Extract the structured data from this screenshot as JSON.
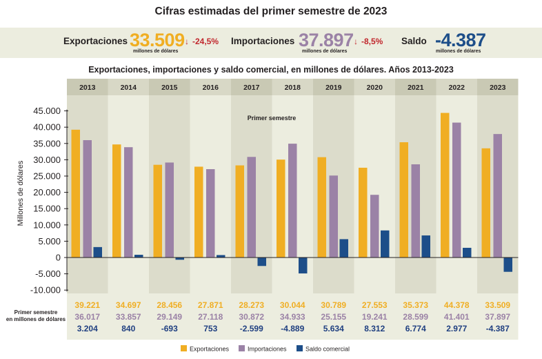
{
  "title": "Cifras estimadas del primer semestre de 2023",
  "kpis": {
    "exports": {
      "label": "Exportaciones",
      "value": "33.509",
      "unit": "millones de dólares",
      "change": "-24,5%"
    },
    "imports": {
      "label": "Importaciones",
      "value": "37.897",
      "unit": "millones de dólares",
      "change": "-8,5%"
    },
    "balance": {
      "label": "Saldo",
      "value": "-4.387",
      "unit": "millones de dólares"
    }
  },
  "colors": {
    "exports": "#f0ae23",
    "imports": "#9b82a6",
    "balance": "#1d4e89",
    "band": "#eceddf",
    "band_dark": "#dcdccb",
    "balance_text": "#1f3f80"
  },
  "chart_data": {
    "type": "bar",
    "title": "Exportaciones, importaciones y saldo comercial, en millones de dólares. Años 2013-2023",
    "annotation": "Primer semestre",
    "ylabel": "Millones de dólares",
    "xlabel": "",
    "ylim": [
      -10000,
      45000
    ],
    "yticks": [
      -10000,
      -5000,
      0,
      5000,
      10000,
      15000,
      20000,
      25000,
      30000,
      35000,
      40000,
      45000
    ],
    "ytick_labels": [
      "-10.000",
      "-5.000",
      "0",
      "5.000",
      "10.000",
      "15.000",
      "20.000",
      "25.000",
      "30.000",
      "35.000",
      "40.000",
      "45.000"
    ],
    "categories": [
      "2013",
      "2014",
      "2015",
      "2016",
      "2017",
      "2018",
      "2019",
      "2020",
      "2021",
      "2022",
      "2023"
    ],
    "series": [
      {
        "name": "Exportaciones",
        "key": "exports",
        "values": [
          39221,
          34697,
          28456,
          27871,
          28273,
          30044,
          30789,
          27553,
          35373,
          44378,
          33509
        ],
        "labels": [
          "39.221",
          "34.697",
          "28.456",
          "27.871",
          "28.273",
          "30.044",
          "30.789",
          "27.553",
          "35.373",
          "44.378",
          "33.509"
        ]
      },
      {
        "name": "Importaciones",
        "key": "imports",
        "values": [
          36017,
          33857,
          29149,
          27118,
          30872,
          34933,
          25155,
          19241,
          28599,
          41401,
          37897
        ],
        "labels": [
          "36.017",
          "33.857",
          "29.149",
          "27.118",
          "30.872",
          "34.933",
          "25.155",
          "19.241",
          "28.599",
          "41.401",
          "37.897"
        ]
      },
      {
        "name": "Saldo comercial",
        "key": "balance",
        "values": [
          3204,
          840,
          -693,
          753,
          -2599,
          -4889,
          5634,
          8312,
          6774,
          2977,
          -4387
        ],
        "labels": [
          "3.204",
          "840",
          "-693",
          "753",
          "-2.599",
          "-4.889",
          "5.634",
          "8.312",
          "6.774",
          "2.977",
          "-4.387"
        ]
      }
    ],
    "table_row_label": [
      "Primer semestre",
      "en millones de dólares"
    ],
    "legend": [
      "Exportaciones",
      "Importaciones",
      "Saldo comercial"
    ],
    "legend_position": "bottom"
  }
}
